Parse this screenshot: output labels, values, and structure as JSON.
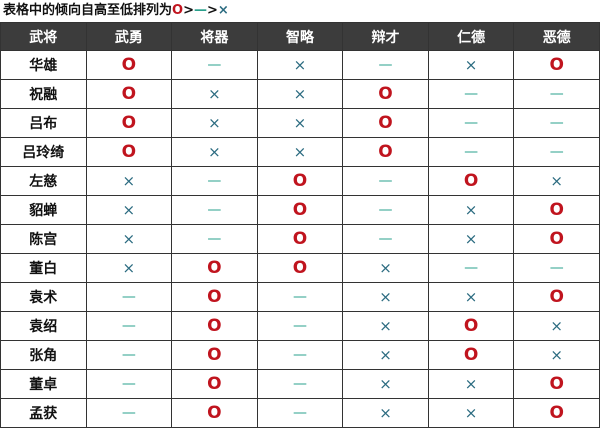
{
  "title": {
    "text": "表格中的倾向自高至低排列为",
    "sym_o": "O",
    "gt1": ">",
    "sym_dash": "—",
    "gt2": ">",
    "sym_x": "×"
  },
  "colors": {
    "high": "#c0141e",
    "mid": "#2aa08c",
    "low": "#2b6b80",
    "header_bg": "#3c3c3c"
  },
  "headers": [
    "武将",
    "武勇",
    "将器",
    "智略",
    "辩才",
    "仁德",
    "恶德"
  ],
  "rows": [
    {
      "name": "华雄",
      "v": [
        "O",
        "—",
        "×",
        "—",
        "×",
        "O"
      ]
    },
    {
      "name": "祝融",
      "v": [
        "O",
        "×",
        "×",
        "O",
        "—",
        "—"
      ]
    },
    {
      "name": "吕布",
      "v": [
        "O",
        "×",
        "×",
        "O",
        "—",
        "—"
      ]
    },
    {
      "name": "吕玲绮",
      "v": [
        "O",
        "×",
        "×",
        "O",
        "—",
        "—"
      ]
    },
    {
      "name": "左慈",
      "v": [
        "×",
        "—",
        "O",
        "—",
        "O",
        "×"
      ]
    },
    {
      "name": "貂蝉",
      "v": [
        "×",
        "—",
        "O",
        "—",
        "×",
        "O"
      ]
    },
    {
      "name": "陈宫",
      "v": [
        "×",
        "—",
        "O",
        "—",
        "×",
        "O"
      ]
    },
    {
      "name": "董白",
      "v": [
        "×",
        "O",
        "O",
        "×",
        "—",
        "—"
      ]
    },
    {
      "name": "袁术",
      "v": [
        "—",
        "O",
        "—",
        "×",
        "×",
        "O"
      ]
    },
    {
      "name": "袁绍",
      "v": [
        "—",
        "O",
        "—",
        "×",
        "O",
        "×"
      ]
    },
    {
      "name": "张角",
      "v": [
        "—",
        "O",
        "—",
        "×",
        "O",
        "×"
      ]
    },
    {
      "name": "董卓",
      "v": [
        "—",
        "O",
        "—",
        "×",
        "×",
        "O"
      ]
    },
    {
      "name": "孟获",
      "v": [
        "—",
        "O",
        "—",
        "×",
        "×",
        "O"
      ]
    }
  ]
}
